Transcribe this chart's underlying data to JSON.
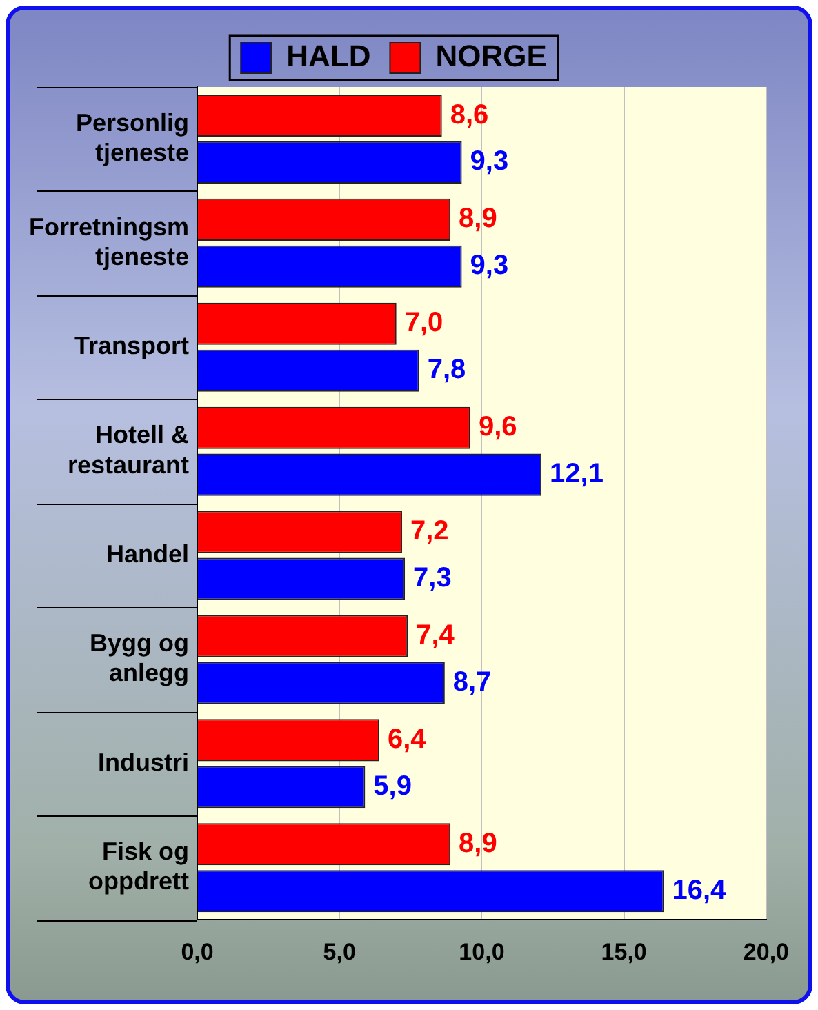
{
  "chart_data": {
    "type": "bar",
    "orientation": "horizontal",
    "categories": [
      "Personlig tjeneste",
      "Forretningsm tjeneste",
      "Transport",
      "Hotell & restaurant",
      "Handel",
      "Bygg og anlegg",
      "Industri",
      "Fisk og oppdrett"
    ],
    "series": [
      {
        "name": "HALD",
        "color": "#0000ff",
        "values": [
          9.3,
          9.3,
          7.8,
          12.1,
          7.3,
          8.7,
          5.9,
          16.4
        ],
        "value_labels": [
          "9,3",
          "9,3",
          "7,8",
          "12,1",
          "7,3",
          "8,7",
          "5,9",
          "16,4"
        ]
      },
      {
        "name": "NORGE",
        "color": "#ff0000",
        "values": [
          8.6,
          8.9,
          7.0,
          9.6,
          7.2,
          7.4,
          6.4,
          8.9
        ],
        "value_labels": [
          "8,6",
          "8,9",
          "7,0",
          "9,6",
          "7,2",
          "7,4",
          "6,4",
          "8,9"
        ]
      }
    ],
    "xlim": [
      0,
      20
    ],
    "xticks": [
      {
        "value": 0,
        "label": "0,0"
      },
      {
        "value": 5,
        "label": "5,0"
      },
      {
        "value": 10,
        "label": "10,0"
      },
      {
        "value": 15,
        "label": "15,0"
      },
      {
        "value": 20,
        "label": "20,0"
      }
    ],
    "grid": "x",
    "legend": "top"
  }
}
